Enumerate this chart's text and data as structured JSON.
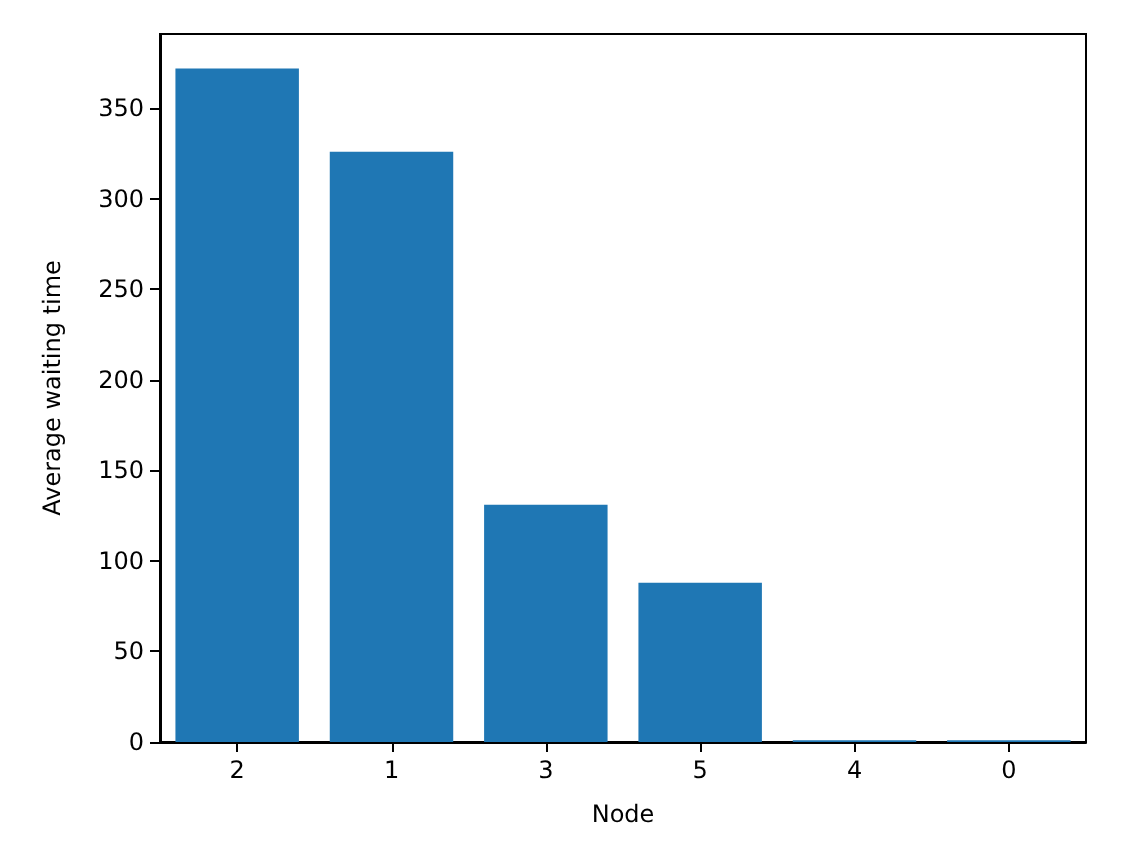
{
  "chart_data": {
    "type": "bar",
    "xlabel": "Node",
    "ylabel": "Average waiting time",
    "categories": [
      "2",
      "1",
      "3",
      "5",
      "4",
      "0"
    ],
    "values": [
      372,
      326,
      131,
      88,
      1,
      1
    ],
    "color": "#1f77b4",
    "ylim": [
      0,
      391
    ],
    "yticks": [
      0,
      50,
      100,
      150,
      200,
      250,
      300,
      350
    ],
    "grid": false
  }
}
